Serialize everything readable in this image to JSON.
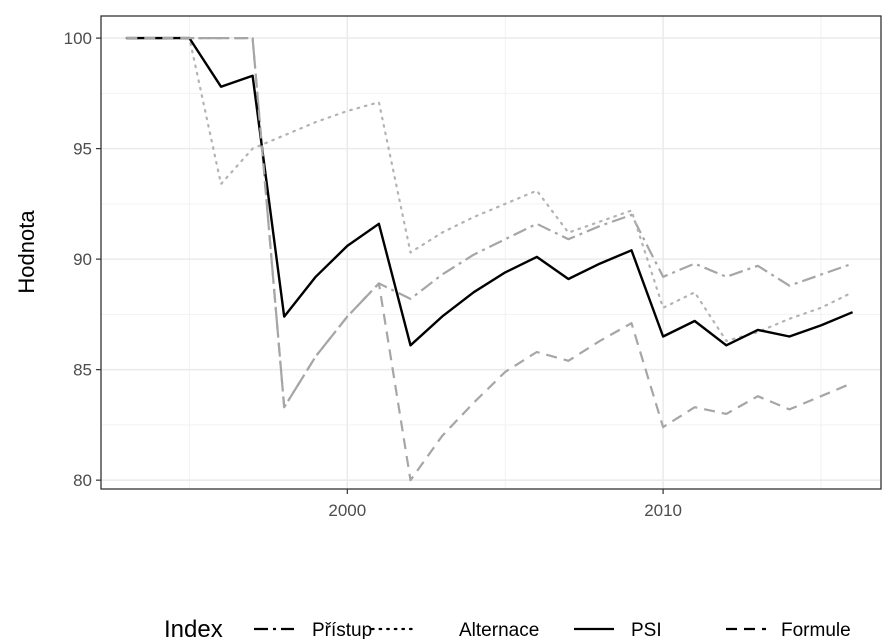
{
  "chart_data": {
    "type": "line",
    "ylabel": "Hodnota",
    "xlabel": "",
    "xlim": [
      1992.2,
      2016.9
    ],
    "ylim": [
      79.6,
      101.0
    ],
    "x_ticks": [
      2000,
      2010
    ],
    "x_tick_labels": [
      "2000",
      "2010"
    ],
    "y_ticks": [
      80,
      85,
      90,
      95,
      100
    ],
    "y_tick_labels": [
      "80",
      "85",
      "90",
      "95",
      "100"
    ],
    "grid": true,
    "legend": {
      "title": "Index",
      "position": "bottom",
      "items": [
        "Přístup",
        "Alternace",
        "PSI",
        "Formule"
      ]
    },
    "x": [
      1993,
      1994,
      1995,
      1996,
      1997,
      1998,
      1999,
      2000,
      2001,
      2002,
      2003,
      2004,
      2005,
      2006,
      2007,
      2008,
      2009,
      2010,
      2011,
      2012,
      2013,
      2014,
      2015,
      2016
    ],
    "series": [
      {
        "name": "Přístup",
        "color": "#a6a6a6",
        "dash": "longdash-dot",
        "values": [
          100,
          100,
          100,
          100,
          100,
          83.3,
          85.6,
          87.4,
          88.9,
          88.2,
          89.3,
          90.2,
          90.9,
          91.6,
          90.9,
          91.5,
          92.0,
          89.2,
          89.8,
          89.2,
          89.7,
          88.8,
          89.3,
          89.8
        ]
      },
      {
        "name": "Alternace",
        "color": "#b3b3b3",
        "dash": "dotted",
        "values": [
          100,
          100,
          100,
          93.4,
          95.0,
          95.6,
          96.2,
          96.7,
          97.1,
          90.3,
          91.2,
          91.9,
          92.5,
          93.1,
          91.2,
          91.7,
          92.2,
          87.8,
          88.5,
          86.3,
          86.7,
          87.3,
          87.8,
          88.5
        ]
      },
      {
        "name": "PSI",
        "color": "#000000",
        "dash": "solid",
        "values": [
          100,
          100,
          100,
          97.8,
          98.3,
          87.4,
          89.2,
          90.6,
          91.6,
          86.1,
          87.4,
          88.5,
          89.4,
          90.1,
          89.1,
          89.8,
          90.4,
          86.5,
          87.2,
          86.1,
          86.8,
          86.5,
          87.0,
          87.6
        ]
      },
      {
        "name": "Formule",
        "color": "#a6a6a6",
        "dash": "dashed",
        "values": [
          100,
          100,
          100,
          100,
          100,
          83.3,
          85.6,
          87.4,
          88.9,
          80.0,
          82.0,
          83.5,
          84.9,
          85.8,
          85.4,
          86.3,
          87.1,
          82.4,
          83.3,
          83.0,
          83.8,
          83.2,
          83.8,
          84.4
        ]
      }
    ]
  }
}
